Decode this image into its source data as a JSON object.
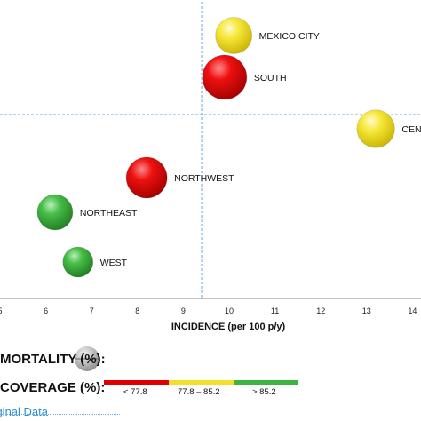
{
  "chart_data": {
    "type": "scatter",
    "xlabel": "INCIDENCE (per 100 p/y)",
    "xlim": [
      4.9,
      14.1
    ],
    "x_ticks": [
      "5",
      "6",
      "7",
      "8",
      "9",
      "10",
      "11",
      "12",
      "13",
      "14"
    ],
    "reference_x": 9.4,
    "grid": false,
    "points": [
      {
        "label": "MEXICO CITY",
        "x": 10.1,
        "size": 0.82,
        "coverage_category": "77.8 – 85.2",
        "color": "#f2e02d"
      },
      {
        "label": "SOUTH",
        "x": 9.9,
        "size": 1.0,
        "coverage_category": "< 77.8",
        "color": "#e00000"
      },
      {
        "label": "CENTRAL",
        "x": 13.2,
        "size": 0.85,
        "coverage_category": "77.8 – 85.2",
        "color": "#f2e02d"
      },
      {
        "label": "NORTHWEST",
        "x": 8.2,
        "size": 0.92,
        "coverage_category": "< 77.8",
        "color": "#e00000"
      },
      {
        "label": "NORTHEAST",
        "x": 6.2,
        "size": 0.8,
        "coverage_category": "> 85.2",
        "color": "#3fb23f"
      },
      {
        "label": "WEST",
        "x": 6.7,
        "size": 0.68,
        "coverage_category": "> 85.2",
        "color": "#3fb23f"
      }
    ],
    "legend": {
      "mortality_title": "MORTALITY (%):",
      "coverage_title": "COVERAGE (%):",
      "coverage_bins": [
        {
          "label": "< 77.8",
          "color": "#e00000"
        },
        {
          "label": "77.8 – 85.2",
          "color": "#f2e02d"
        },
        {
          "label": "> 85.2",
          "color": "#3fb23f"
        }
      ]
    }
  },
  "footer": {
    "link_text": "Original Data"
  }
}
